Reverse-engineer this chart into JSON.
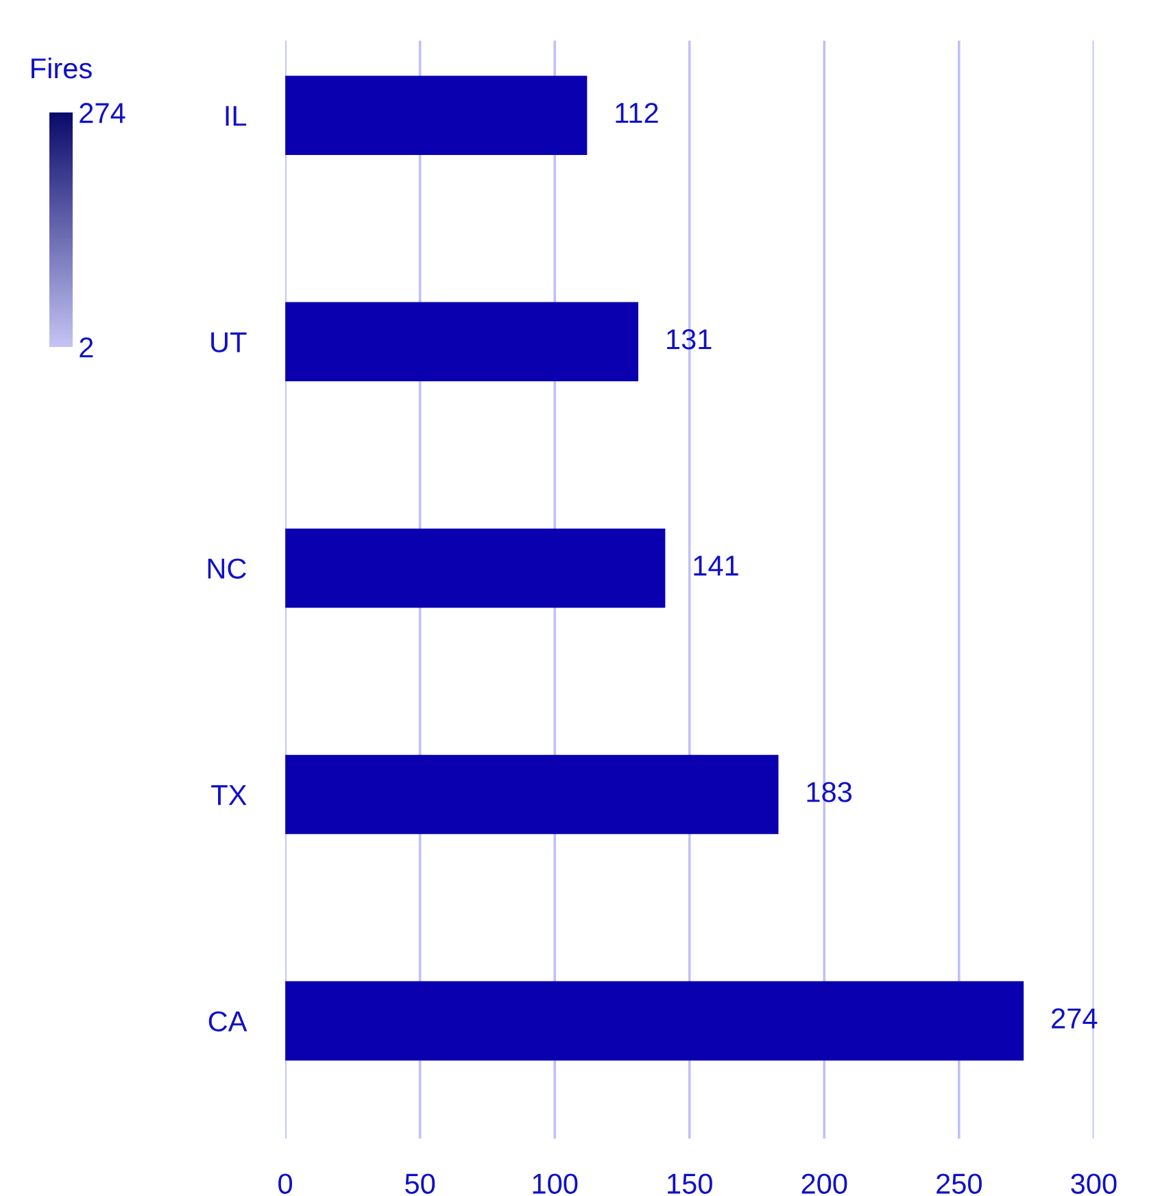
{
  "chart_data": {
    "type": "bar",
    "orientation": "horizontal",
    "categories": [
      "IL",
      "UT",
      "NC",
      "TX",
      "CA"
    ],
    "values": [
      112,
      131,
      141,
      183,
      274
    ],
    "color": "#0a00b0",
    "data_labels": true,
    "xlim": [
      0,
      300
    ],
    "xticks": [
      0,
      50,
      100,
      150,
      200,
      250,
      300
    ],
    "grid": "x",
    "clabel": "Fires",
    "clim": [
      2,
      274
    ],
    "cticks": [
      2,
      274
    ]
  }
}
